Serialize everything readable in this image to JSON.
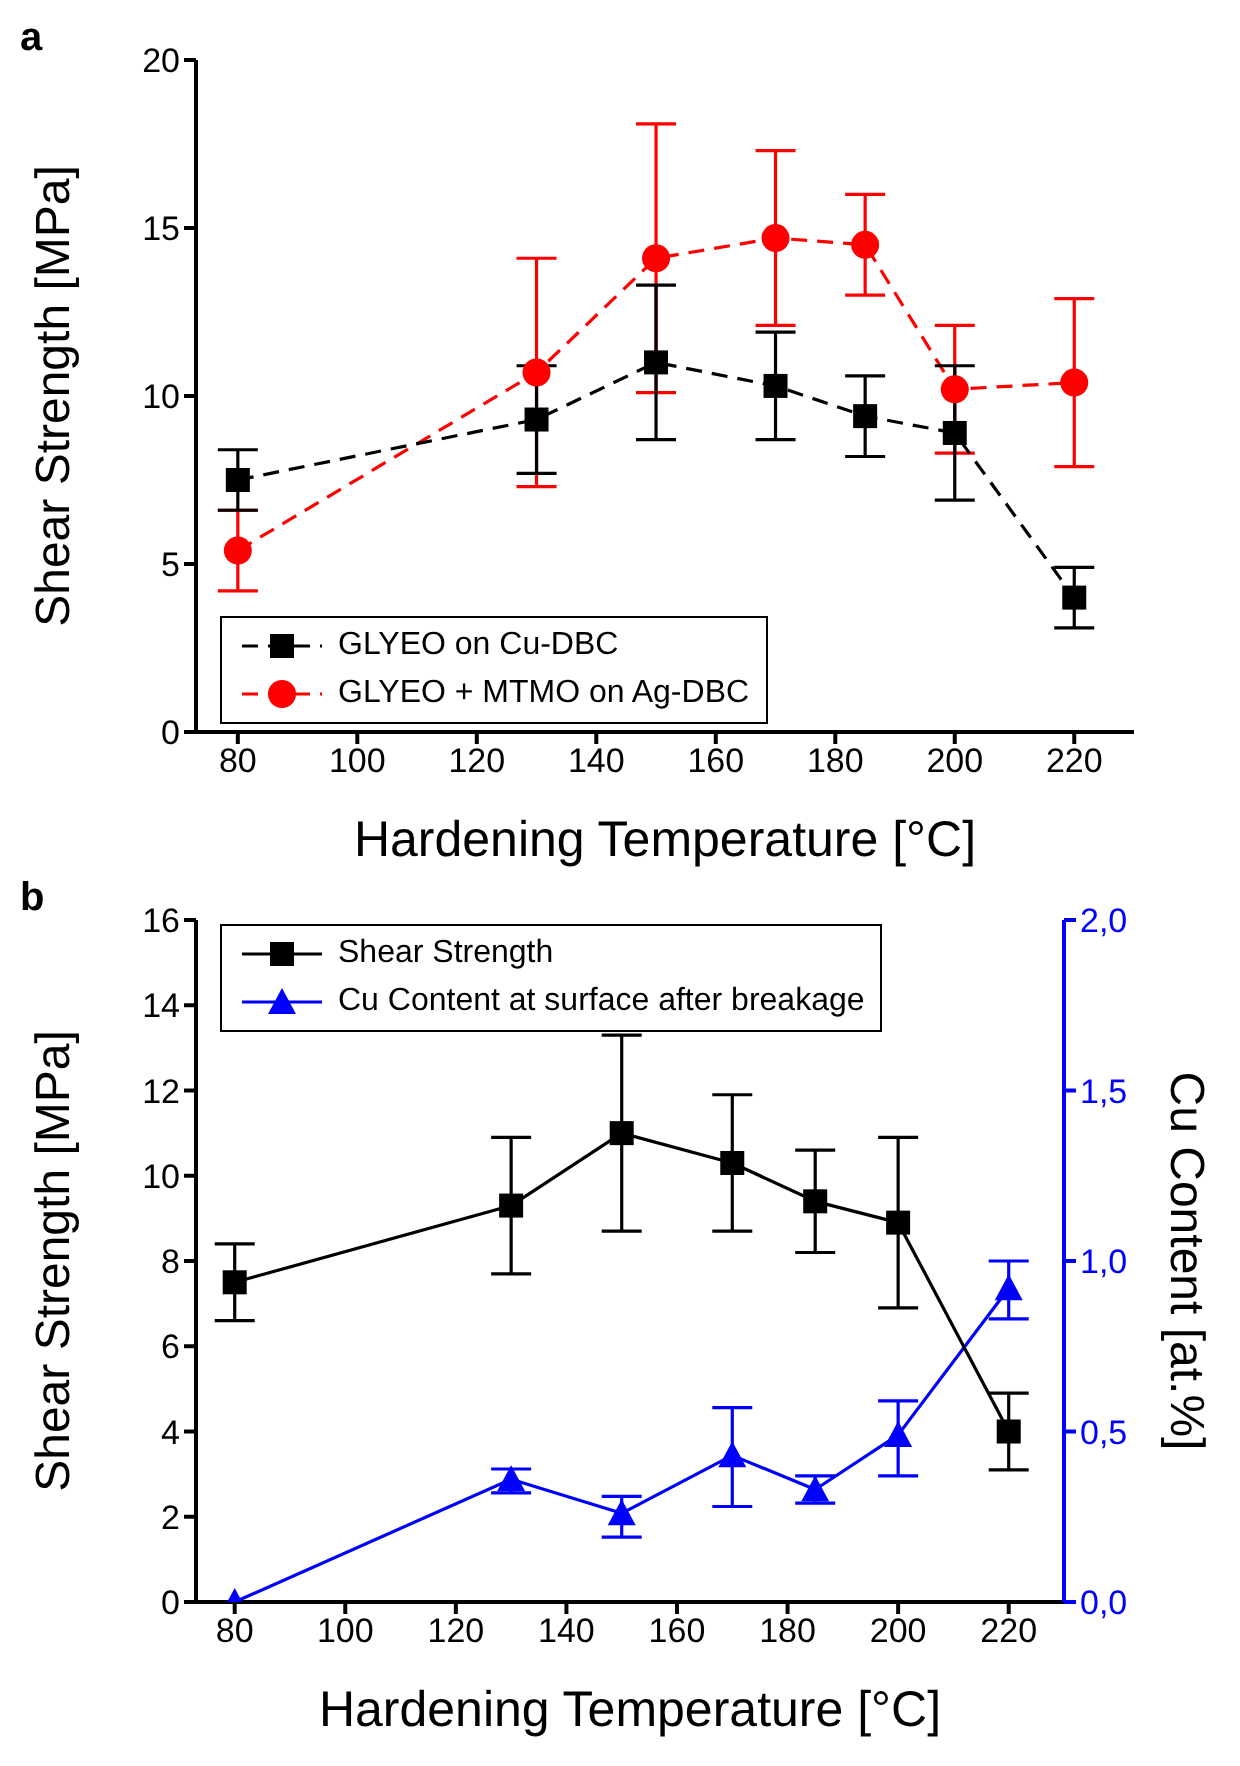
{
  "chart_data": [
    {
      "type": "line",
      "title": "a",
      "xlabel": "Hardening Temperature [°C]",
      "ylabel": "Shear Strength [MPa]",
      "x": [
        80,
        130,
        150,
        170,
        185,
        200,
        220
      ],
      "xlim": [
        73,
        230
      ],
      "xticks": [
        80,
        100,
        120,
        140,
        160,
        180,
        200,
        220
      ],
      "ylim": [
        0,
        20
      ],
      "yticks": [
        0,
        5,
        10,
        15,
        20
      ],
      "legend": "bottom left",
      "grid": false,
      "series": [
        {
          "name": "GLYEO on Cu-DBC",
          "color": "#000000",
          "marker": "square",
          "line_style": "dashed",
          "values": [
            7.5,
            9.3,
            11.0,
            10.3,
            9.4,
            8.9,
            4.0
          ],
          "errors": [
            [
              6.6,
              8.4
            ],
            [
              7.7,
              10.9
            ],
            [
              8.7,
              13.3
            ],
            [
              8.7,
              11.9
            ],
            [
              8.2,
              10.6
            ],
            [
              6.9,
              10.9
            ],
            [
              3.1,
              4.9
            ]
          ]
        },
        {
          "name": "GLYEO + MTMO on Ag-DBC",
          "color": "#ff0000",
          "marker": "circle",
          "line_style": "dashed",
          "values": [
            5.4,
            10.7,
            14.1,
            14.7,
            14.5,
            10.2,
            10.4
          ],
          "errors": [
            [
              4.2,
              6.6
            ],
            [
              7.3,
              14.1
            ],
            [
              10.1,
              18.1
            ],
            [
              12.1,
              17.3
            ],
            [
              13.0,
              16.0
            ],
            [
              8.3,
              12.1
            ],
            [
              7.9,
              12.9
            ]
          ]
        }
      ]
    },
    {
      "type": "line",
      "title": "b",
      "xlabel": "Hardening Temperature [°C]",
      "ylabel": "Shear Strength [MPa]",
      "y2label": "Cu Content [at.%]",
      "x": [
        80,
        130,
        150,
        170,
        185,
        200,
        220
      ],
      "xlim": [
        73,
        230
      ],
      "xticks": [
        80,
        100,
        120,
        140,
        160,
        180,
        200,
        220
      ],
      "ylim": [
        0,
        16
      ],
      "yticks": [
        0,
        2,
        4,
        6,
        8,
        10,
        12,
        14,
        16
      ],
      "y2lim": [
        0,
        2
      ],
      "y2ticks": [
        {
          "value": 0,
          "label": "0,0"
        },
        {
          "value": 0.5,
          "label": "0,5"
        },
        {
          "value": 1,
          "label": "1,0"
        },
        {
          "value": 1.5,
          "label": "1,5"
        },
        {
          "value": 2,
          "label": "2,0"
        }
      ],
      "legend": "top left",
      "grid": false,
      "series": [
        {
          "name": "Shear Strength",
          "color": "#000000",
          "marker": "square",
          "line_style": "solid",
          "values": [
            7.5,
            9.3,
            11.0,
            10.3,
            9.4,
            8.9,
            4.0
          ],
          "errors": [
            [
              6.6,
              8.4
            ],
            [
              7.7,
              10.9
            ],
            [
              8.7,
              13.3
            ],
            [
              8.7,
              11.9
            ],
            [
              8.2,
              10.6
            ],
            [
              6.9,
              10.9
            ],
            [
              3.1,
              4.9
            ]
          ]
        },
        {
          "name": "Cu Content at surface after breakage",
          "color": "#0000ff",
          "marker": "triangle",
          "line_style": "solid",
          "axis": "y2",
          "values": [
            0.0,
            0.36,
            0.26,
            0.43,
            0.33,
            0.49,
            0.92
          ],
          "errors": [
            null,
            [
              0.32,
              0.39
            ],
            [
              0.19,
              0.31
            ],
            [
              0.28,
              0.57
            ],
            [
              0.29,
              0.37
            ],
            [
              0.37,
              0.59
            ],
            [
              0.83,
              1.0
            ]
          ]
        }
      ]
    }
  ]
}
